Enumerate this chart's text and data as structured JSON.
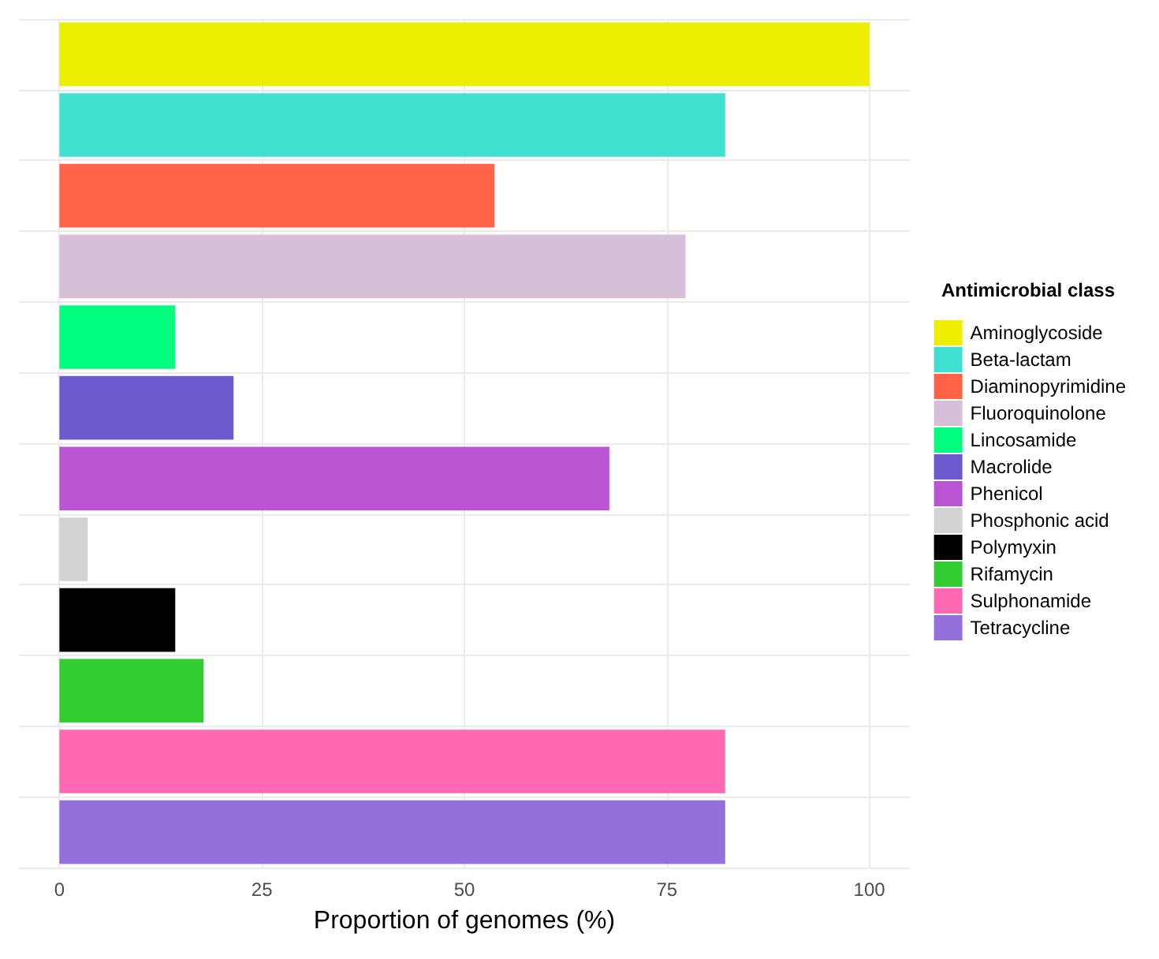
{
  "chart_data": {
    "type": "bar",
    "orientation": "horizontal",
    "xlabel": "Proportion of genomes (%)",
    "legend_title": "Antimicrobial class",
    "legend": "right",
    "grid": true,
    "tick_labels": "x",
    "categories": [
      null,
      null,
      null,
      null,
      null,
      null,
      null,
      null,
      null,
      null,
      null,
      null
    ],
    "xlim": [
      -5,
      105
    ],
    "xticks": [
      0,
      25,
      50,
      75,
      100
    ],
    "series": [
      {
        "name": "Aminoglycoside",
        "color": "#eeee00",
        "values": [
          100,
          null,
          null,
          null,
          null,
          null,
          null,
          null,
          null,
          null,
          null,
          null
        ]
      },
      {
        "name": "Beta-lactam",
        "color": "#40e0d0",
        "values": [
          null,
          82.2,
          null,
          null,
          null,
          null,
          null,
          null,
          null,
          null,
          null,
          null
        ]
      },
      {
        "name": "Diaminopyrimidine",
        "color": "#ff6347",
        "values": [
          null,
          null,
          53.7,
          null,
          null,
          null,
          null,
          null,
          null,
          null,
          null,
          null
        ]
      },
      {
        "name": "Fluoroquinolone",
        "color": "#d8bfd8",
        "values": [
          null,
          null,
          null,
          77.3,
          null,
          null,
          null,
          null,
          null,
          null,
          null,
          null
        ]
      },
      {
        "name": "Lincosamide",
        "color": "#00ff7f",
        "values": [
          null,
          null,
          null,
          null,
          14.3,
          null,
          null,
          null,
          null,
          null,
          null,
          null
        ]
      },
      {
        "name": "Macrolide",
        "color": "#6a5acd",
        "values": [
          null,
          null,
          null,
          null,
          null,
          21.5,
          null,
          null,
          null,
          null,
          null,
          null
        ]
      },
      {
        "name": "Phenicol",
        "color": "#ba55d3",
        "values": [
          null,
          null,
          null,
          null,
          null,
          null,
          67.9,
          null,
          null,
          null,
          null,
          null
        ]
      },
      {
        "name": "Phosphonic acid",
        "color": "#d3d3d3",
        "values": [
          null,
          null,
          null,
          null,
          null,
          null,
          null,
          3.5,
          null,
          null,
          null,
          null
        ]
      },
      {
        "name": "Polymyxin",
        "color": "#000000",
        "values": [
          null,
          null,
          null,
          null,
          null,
          null,
          null,
          null,
          14.3,
          null,
          null,
          null
        ]
      },
      {
        "name": "Rifamycin",
        "color": "#32cd32",
        "values": [
          null,
          null,
          null,
          null,
          null,
          null,
          null,
          null,
          null,
          17.8,
          null,
          null
        ]
      },
      {
        "name": "Sulphonamide",
        "color": "#ff69b4",
        "values": [
          null,
          null,
          null,
          null,
          null,
          null,
          null,
          null,
          null,
          null,
          82.2,
          null
        ]
      },
      {
        "name": "Tetracycline",
        "color": "#9370db",
        "values": [
          null,
          null,
          null,
          null,
          null,
          null,
          null,
          null,
          null,
          null,
          null,
          82.2
        ]
      }
    ]
  }
}
